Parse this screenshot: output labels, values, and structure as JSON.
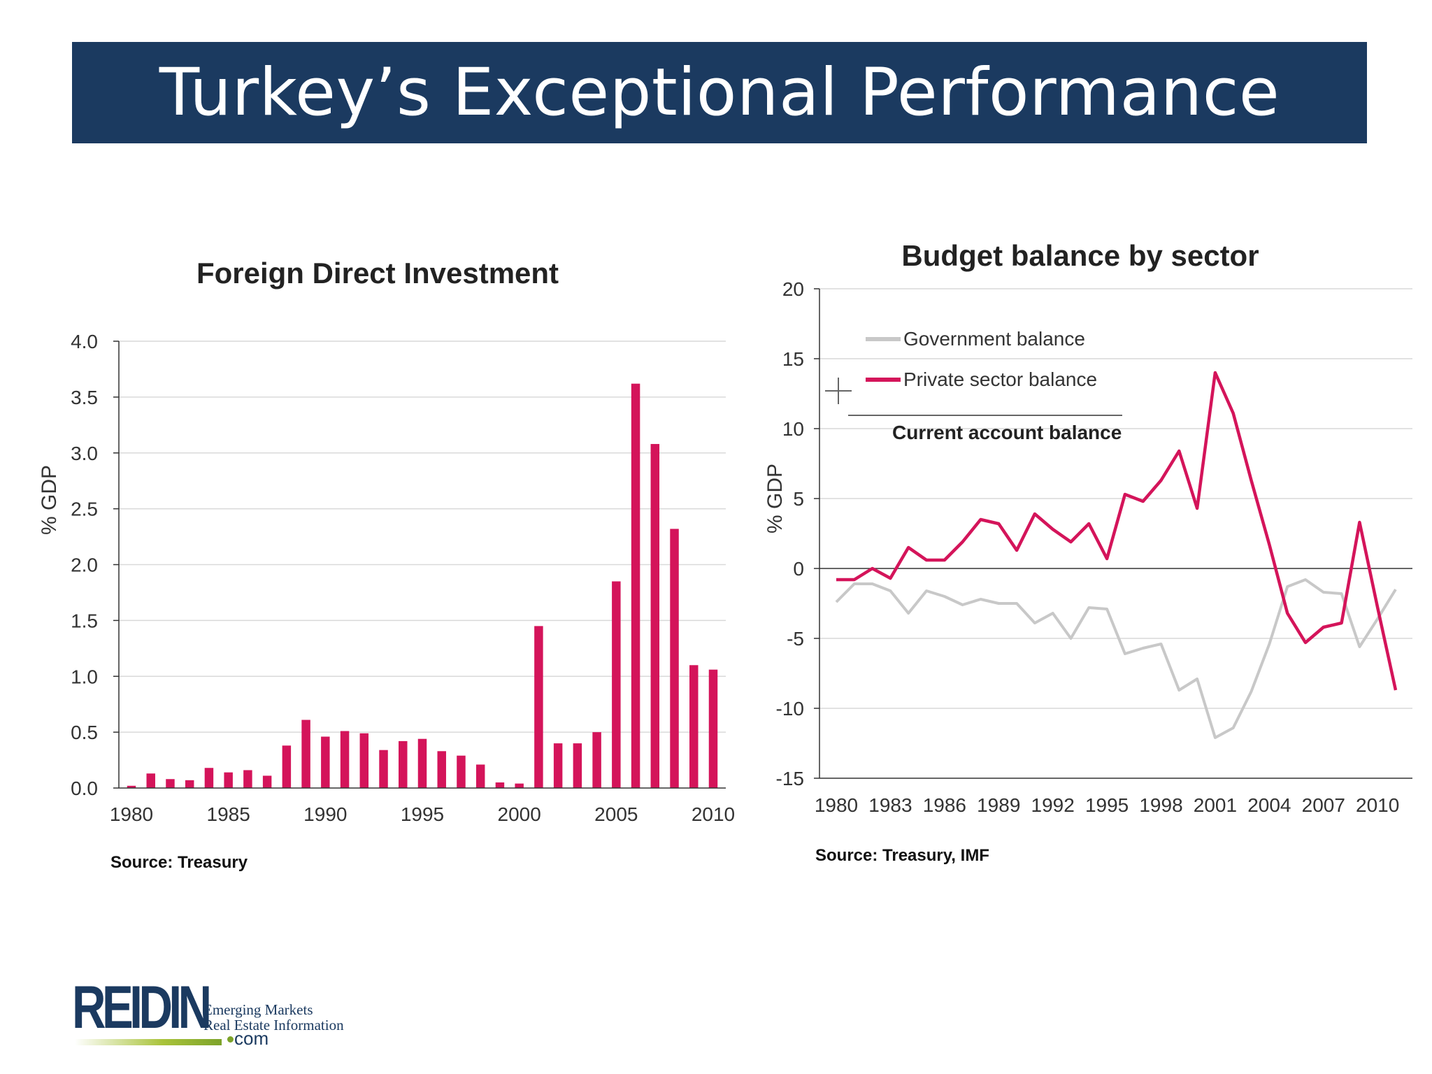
{
  "slide": {
    "title": "Turkey’s Exceptional Performance"
  },
  "sources": {
    "left": "Source: Treasury",
    "right": "Source: Treasury, IMF"
  },
  "logo": {
    "brand": "REIDIN",
    "line1": "Emerging Markets",
    "line2": "Real Estate Information",
    "suffix": "com"
  },
  "colors": {
    "banner": "#1b3a60",
    "bar": "#d4145a",
    "private": "#d4145a",
    "government": "#c8c8c8",
    "grid": "#d9d9d9"
  },
  "chart_data": [
    {
      "type": "bar",
      "title": "Foreign Direct Investment",
      "ylabel": "% GDP",
      "ylim": [
        0,
        4
      ],
      "yticks": [
        "0.0",
        "0.5",
        "1.0",
        "1.5",
        "2.0",
        "2.5",
        "3.0",
        "3.5",
        "4.0"
      ],
      "xticks": [
        "1980",
        "1985",
        "1990",
        "1995",
        "2000",
        "2005",
        "2010"
      ],
      "x": [
        1980,
        1981,
        1982,
        1983,
        1984,
        1985,
        1986,
        1987,
        1988,
        1989,
        1990,
        1991,
        1992,
        1993,
        1994,
        1995,
        1996,
        1997,
        1998,
        1999,
        2000,
        2001,
        2002,
        2003,
        2004,
        2005,
        2006,
        2007,
        2008,
        2009,
        2010
      ],
      "values": [
        0.02,
        0.13,
        0.08,
        0.07,
        0.18,
        0.14,
        0.16,
        0.11,
        0.38,
        0.61,
        0.46,
        0.51,
        0.49,
        0.34,
        0.42,
        0.44,
        0.33,
        0.29,
        0.21,
        0.05,
        0.04,
        1.45,
        0.4,
        0.4,
        0.5,
        1.85,
        3.62,
        3.08,
        2.32,
        1.1,
        1.06
      ],
      "grid": true
    },
    {
      "type": "line",
      "title": "Budget balance by sector",
      "ylabel": "% GDP",
      "ylim": [
        -15,
        20
      ],
      "yticks": [
        "20",
        "15",
        "10",
        "5",
        "0",
        "-5",
        "-10",
        "-15"
      ],
      "xticks": [
        "1980",
        "1983",
        "1986",
        "1989",
        "1992",
        "1995",
        "1998",
        "2001",
        "2004",
        "2007",
        "2010"
      ],
      "x": [
        1980,
        1981,
        1982,
        1983,
        1984,
        1985,
        1986,
        1987,
        1988,
        1989,
        1990,
        1991,
        1992,
        1993,
        1994,
        1995,
        1996,
        1997,
        1998,
        1999,
        2000,
        2001,
        2002,
        2003,
        2004,
        2005,
        2006,
        2007,
        2008,
        2009,
        2010,
        2011
      ],
      "series": [
        {
          "name": "Government balance",
          "values": [
            -2.4,
            -1.1,
            -1.1,
            -1.6,
            -3.2,
            -1.6,
            -2.0,
            -2.6,
            -2.2,
            -2.5,
            -2.5,
            -3.9,
            -3.2,
            -5.0,
            -2.8,
            -2.9,
            -6.1,
            -5.7,
            -5.4,
            -8.7,
            -7.9,
            -12.1,
            -11.4,
            -8.8,
            -5.4,
            -1.3,
            -0.8,
            -1.7,
            -1.8,
            -5.6,
            -3.6,
            -1.5
          ]
        },
        {
          "name": "Private sector balance",
          "values": [
            -0.8,
            -0.8,
            0.0,
            -0.7,
            1.5,
            0.6,
            0.6,
            1.9,
            3.5,
            3.2,
            1.3,
            3.9,
            2.8,
            1.9,
            3.2,
            0.7,
            5.3,
            4.8,
            6.3,
            8.4,
            4.3,
            14.0,
            11.1,
            6.3,
            1.7,
            -3.2,
            -5.3,
            -4.2,
            -3.9,
            3.3,
            -2.8,
            -8.7
          ]
        }
      ],
      "legend": {
        "placement": "top-left",
        "third_label": "Current account balance"
      },
      "grid": true
    }
  ]
}
